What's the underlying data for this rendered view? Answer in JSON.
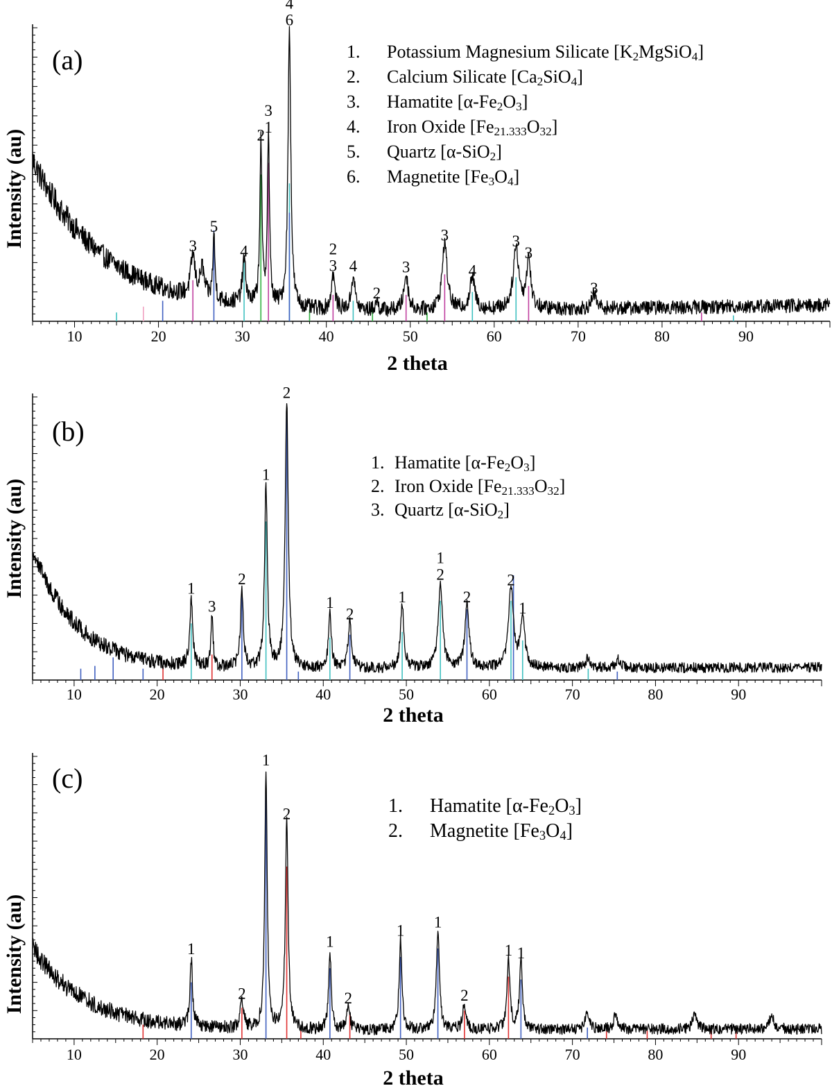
{
  "chart_data": [
    {
      "type": "line",
      "panel_label": "(a)",
      "xlabel": "2 theta",
      "ylabel": "Intensity (au)",
      "xlim": [
        5,
        100
      ],
      "ylim": [
        0,
        100
      ],
      "xticks": [
        10,
        20,
        30,
        40,
        50,
        60,
        70,
        80,
        90
      ],
      "background": {
        "start": 52,
        "decay": 8.5,
        "floor": 3,
        "noise": 4.0,
        "late_slope": 2.5
      },
      "legend": {
        "items": [
          {
            "num": "1.",
            "name": "Potassium Magnesium Silicate",
            "formula": [
              [
                "[K",
                "n"
              ],
              [
                "2",
                "sub"
              ],
              [
                "MgSiO",
                "n"
              ],
              [
                "4",
                "sub"
              ],
              [
                "]",
                "n"
              ]
            ]
          },
          {
            "num": "2.",
            "name": "Calcium Silicate",
            "formula": [
              [
                "[Ca",
                "n"
              ],
              [
                "2",
                "sub"
              ],
              [
                "SiO",
                "n"
              ],
              [
                "4",
                "sub"
              ],
              [
                "]",
                "n"
              ]
            ]
          },
          {
            "num": "3.",
            "name": "Hamatite",
            "formula": [
              [
                "[α-Fe",
                "n"
              ],
              [
                "2",
                "sub"
              ],
              [
                "O",
                "n"
              ],
              [
                "3",
                "sub"
              ],
              [
                "]",
                "n"
              ]
            ]
          },
          {
            "num": "4.",
            "name": "Iron Oxide",
            "formula": [
              [
                "[Fe",
                "n"
              ],
              [
                "21.333",
                "sub"
              ],
              [
                "O",
                "n"
              ],
              [
                "32",
                "sub"
              ],
              [
                "]",
                "n"
              ]
            ]
          },
          {
            "num": "5.",
            "name": "Quartz",
            "formula": [
              [
                "[α-SiO",
                "n"
              ],
              [
                "2",
                "sub"
              ],
              [
                "]",
                "n"
              ]
            ]
          },
          {
            "num": "6.",
            "name": "Magnetite",
            "formula": [
              [
                "[Fe",
                "n"
              ],
              [
                "3",
                "sub"
              ],
              [
                "O",
                "n"
              ],
              [
                "4",
                "sub"
              ],
              [
                "]",
                "n"
              ]
            ]
          }
        ]
      },
      "peaks": [
        {
          "x": 24.1,
          "h": 14,
          "w": 0.3,
          "labels": [
            "3"
          ]
        },
        {
          "x": 25.2,
          "h": 10,
          "w": 0.3,
          "labels": []
        },
        {
          "x": 26.6,
          "h": 22,
          "w": 0.15,
          "labels": [
            "5"
          ]
        },
        {
          "x": 30.2,
          "h": 15,
          "w": 0.25,
          "labels": [
            "4"
          ]
        },
        {
          "x": 32.2,
          "h": 55,
          "w": 0.15,
          "labels": [
            "2"
          ]
        },
        {
          "x": 33.1,
          "h": 58,
          "w": 0.15,
          "labels": [
            "3",
            "1"
          ]
        },
        {
          "x": 35.6,
          "h": 95,
          "w": 0.2,
          "labels": [
            "4",
            "6"
          ]
        },
        {
          "x": 40.8,
          "h": 12,
          "w": 0.25,
          "labels": [
            "2",
            "3"
          ]
        },
        {
          "x": 43.2,
          "h": 12,
          "w": 0.25,
          "labels": [
            "4"
          ]
        },
        {
          "x": 46.0,
          "h": 3,
          "w": 0.2,
          "labels": [
            "2"
          ]
        },
        {
          "x": 49.5,
          "h": 12,
          "w": 0.3,
          "labels": [
            "3"
          ]
        },
        {
          "x": 54.1,
          "h": 23,
          "w": 0.35,
          "labels": [
            "3"
          ]
        },
        {
          "x": 57.4,
          "h": 11,
          "w": 0.35,
          "labels": [
            "4"
          ]
        },
        {
          "x": 62.6,
          "h": 21,
          "w": 0.4,
          "labels": [
            "3"
          ]
        },
        {
          "x": 64.1,
          "h": 17,
          "w": 0.3,
          "labels": [
            "3"
          ]
        },
        {
          "x": 71.9,
          "h": 5,
          "w": 0.3,
          "labels": [
            "3"
          ]
        }
      ],
      "reference_lines": [
        {
          "x": 24.1,
          "h": 14,
          "color": "#c040a0"
        },
        {
          "x": 26.6,
          "h": 31,
          "color": "#4060c0"
        },
        {
          "x": 30.2,
          "h": 22,
          "color": "#40c0c0"
        },
        {
          "x": 32.2,
          "h": 50,
          "color": "#30b040"
        },
        {
          "x": 33.1,
          "h": 54,
          "color": "#c040a0"
        },
        {
          "x": 35.6,
          "h": 47,
          "color": "#40c0c0"
        },
        {
          "x": 35.6,
          "h": 37,
          "color": "#4060c0"
        },
        {
          "x": 40.8,
          "h": 9,
          "color": "#c040a0"
        },
        {
          "x": 43.2,
          "h": 7,
          "color": "#40c0c0"
        },
        {
          "x": 49.5,
          "h": 9,
          "color": "#c040a0"
        },
        {
          "x": 54.1,
          "h": 16,
          "color": "#c040a0"
        },
        {
          "x": 57.4,
          "h": 10,
          "color": "#40c0c0"
        },
        {
          "x": 62.6,
          "h": 15,
          "color": "#40c0c0"
        },
        {
          "x": 64.1,
          "h": 12,
          "color": "#c040a0"
        },
        {
          "x": 20.5,
          "h": 7,
          "color": "#4060c0"
        },
        {
          "x": 18.2,
          "h": 5,
          "color": "#f0a0c0"
        },
        {
          "x": 15.0,
          "h": 3,
          "color": "#40c0c0"
        },
        {
          "x": 38.0,
          "h": 4,
          "color": "#30b040"
        },
        {
          "x": 45.5,
          "h": 5,
          "color": "#30b040"
        },
        {
          "x": 52.0,
          "h": 3,
          "color": "#30b040"
        },
        {
          "x": 84.7,
          "h": 3,
          "color": "#c040a0"
        },
        {
          "x": 88.5,
          "h": 2,
          "color": "#40c0c0"
        }
      ]
    },
    {
      "type": "line",
      "panel_label": "(b)",
      "xlabel": "2 theta",
      "ylabel": "Intensity (au)",
      "xlim": [
        5,
        100
      ],
      "ylim": [
        0,
        100
      ],
      "xticks": [
        10,
        20,
        30,
        40,
        50,
        60,
        70,
        80,
        90
      ],
      "background": {
        "start": 43,
        "decay": 5.2,
        "floor": 4,
        "noise": 3.0,
        "late_slope": 0.5
      },
      "legend": {
        "items": [
          {
            "num": "1.",
            "name": "Hamatite",
            "formula": [
              [
                "[α-Fe",
                "n"
              ],
              [
                "2",
                "sub"
              ],
              [
                "O",
                "n"
              ],
              [
                "3",
                "sub"
              ],
              [
                "]",
                "n"
              ]
            ]
          },
          {
            "num": "2.",
            "name": "Iron Oxide",
            "formula": [
              [
                "[Fe",
                "n"
              ],
              [
                "21.333",
                "sub"
              ],
              [
                "O",
                "n"
              ],
              [
                "32",
                "sub"
              ],
              [
                "]",
                "n"
              ]
            ]
          },
          {
            "num": "3.",
            "name": "Quartz",
            "formula": [
              [
                "[α-SiO",
                "n"
              ],
              [
                "2",
                "sub"
              ],
              [
                "]",
                "n"
              ]
            ]
          }
        ]
      },
      "peaks": [
        {
          "x": 24.1,
          "h": 24,
          "w": 0.2,
          "labels": [
            "1"
          ]
        },
        {
          "x": 26.6,
          "h": 18,
          "w": 0.15,
          "labels": [
            "3"
          ]
        },
        {
          "x": 30.2,
          "h": 28,
          "w": 0.2,
          "labels": [
            "2"
          ]
        },
        {
          "x": 33.1,
          "h": 65,
          "w": 0.2,
          "labels": [
            "1"
          ]
        },
        {
          "x": 35.6,
          "h": 94,
          "w": 0.22,
          "labels": [
            "2"
          ]
        },
        {
          "x": 40.8,
          "h": 20,
          "w": 0.2,
          "labels": [
            "1"
          ]
        },
        {
          "x": 43.2,
          "h": 16,
          "w": 0.25,
          "labels": [
            "2"
          ]
        },
        {
          "x": 49.5,
          "h": 22,
          "w": 0.25,
          "labels": [
            "1"
          ]
        },
        {
          "x": 54.1,
          "h": 30,
          "w": 0.3,
          "labels": [
            "1",
            "2"
          ]
        },
        {
          "x": 57.3,
          "h": 22,
          "w": 0.3,
          "labels": [
            "2"
          ]
        },
        {
          "x": 62.6,
          "h": 28,
          "w": 0.35,
          "labels": [
            "2"
          ]
        },
        {
          "x": 64.0,
          "h": 18,
          "w": 0.3,
          "labels": [
            "1"
          ]
        },
        {
          "x": 71.9,
          "h": 4,
          "w": 0.3,
          "labels": []
        },
        {
          "x": 75.5,
          "h": 3,
          "w": 0.3,
          "labels": []
        }
      ],
      "reference_lines": [
        {
          "x": 24.1,
          "h": 20,
          "color": "#40c0c0"
        },
        {
          "x": 26.6,
          "h": 9,
          "color": "#e03030"
        },
        {
          "x": 30.2,
          "h": 31,
          "color": "#4060c0"
        },
        {
          "x": 33.1,
          "h": 56,
          "color": "#40c0c0"
        },
        {
          "x": 35.6,
          "h": 94,
          "color": "#4060c0"
        },
        {
          "x": 40.8,
          "h": 15,
          "color": "#40c0c0"
        },
        {
          "x": 43.2,
          "h": 16,
          "color": "#4060c0"
        },
        {
          "x": 49.5,
          "h": 17,
          "color": "#40c0c0"
        },
        {
          "x": 54.1,
          "h": 28,
          "color": "#40c0c0"
        },
        {
          "x": 57.3,
          "h": 25,
          "color": "#4060c0"
        },
        {
          "x": 62.6,
          "h": 28,
          "color": "#40c0c0"
        },
        {
          "x": 62.9,
          "h": 37,
          "color": "#4060c0"
        },
        {
          "x": 64.0,
          "h": 14,
          "color": "#40c0c0"
        },
        {
          "x": 10.8,
          "h": 4,
          "color": "#4060c0"
        },
        {
          "x": 12.5,
          "h": 5,
          "color": "#4060c0"
        },
        {
          "x": 14.7,
          "h": 8,
          "color": "#4060c0"
        },
        {
          "x": 18.3,
          "h": 4,
          "color": "#4060c0"
        },
        {
          "x": 20.7,
          "h": 5,
          "color": "#e03030"
        },
        {
          "x": 37.0,
          "h": 3,
          "color": "#4060c0"
        },
        {
          "x": 71.9,
          "h": 4,
          "color": "#40c0c0"
        },
        {
          "x": 75.4,
          "h": 3,
          "color": "#4060c0"
        }
      ]
    },
    {
      "type": "line",
      "panel_label": "(c)",
      "xlabel": "2 theta",
      "ylabel": "Intensity (au)",
      "xlim": [
        5,
        100
      ],
      "ylim": [
        0,
        100
      ],
      "xticks": [
        10,
        20,
        30,
        40,
        50,
        60,
        70,
        80,
        90
      ],
      "background": {
        "start": 29,
        "decay": 6.5,
        "floor": 3,
        "noise": 3.2,
        "late_slope": 0.5
      },
      "legend": {
        "items": [
          {
            "num": "1.",
            "name": "Hamatite",
            "formula": [
              [
                "[α-Fe",
                "n"
              ],
              [
                "2",
                "sub"
              ],
              [
                "O",
                "n"
              ],
              [
                "3",
                "sub"
              ],
              [
                "]",
                "n"
              ]
            ]
          },
          {
            "num": "2.",
            "name": "Magnetite",
            "formula": [
              [
                "[Fe",
                "n"
              ],
              [
                "3",
                "sub"
              ],
              [
                "O",
                "n"
              ],
              [
                "4",
                "sub"
              ],
              [
                "]",
                "n"
              ]
            ]
          }
        ]
      },
      "peaks": [
        {
          "x": 24.1,
          "h": 24,
          "w": 0.18,
          "labels": [
            "1"
          ]
        },
        {
          "x": 30.2,
          "h": 9,
          "w": 0.25,
          "labels": [
            "2"
          ]
        },
        {
          "x": 33.1,
          "h": 92,
          "w": 0.18,
          "labels": [
            "1"
          ]
        },
        {
          "x": 35.6,
          "h": 73,
          "w": 0.2,
          "labels": [
            "2"
          ]
        },
        {
          "x": 40.8,
          "h": 28,
          "w": 0.18,
          "labels": [
            "1"
          ]
        },
        {
          "x": 43.0,
          "h": 8,
          "w": 0.25,
          "labels": [
            "2"
          ]
        },
        {
          "x": 49.3,
          "h": 32,
          "w": 0.2,
          "labels": [
            "1"
          ]
        },
        {
          "x": 53.8,
          "h": 35,
          "w": 0.22,
          "labels": [
            "1"
          ]
        },
        {
          "x": 57.0,
          "h": 9,
          "w": 0.25,
          "labels": [
            "2"
          ]
        },
        {
          "x": 62.3,
          "h": 25,
          "w": 0.22,
          "labels": [
            "1"
          ]
        },
        {
          "x": 63.8,
          "h": 24,
          "w": 0.22,
          "labels": [
            "1"
          ]
        },
        {
          "x": 71.8,
          "h": 6,
          "w": 0.3,
          "labels": []
        },
        {
          "x": 75.2,
          "h": 5,
          "w": 0.3,
          "labels": []
        },
        {
          "x": 84.7,
          "h": 5,
          "w": 0.3,
          "labels": []
        },
        {
          "x": 94.0,
          "h": 5,
          "w": 0.3,
          "labels": []
        }
      ],
      "reference_lines": [
        {
          "x": 18.3,
          "h": 5,
          "color": "#e03030"
        },
        {
          "x": 24.1,
          "h": 20,
          "color": "#4060c0"
        },
        {
          "x": 30.2,
          "h": 11,
          "color": "#e03030"
        },
        {
          "x": 33.1,
          "h": 90,
          "color": "#4060c0"
        },
        {
          "x": 35.6,
          "h": 61,
          "color": "#e03030"
        },
        {
          "x": 37.3,
          "h": 3,
          "color": "#e03030"
        },
        {
          "x": 40.8,
          "h": 25,
          "color": "#4060c0"
        },
        {
          "x": 43.2,
          "h": 9,
          "color": "#e03030"
        },
        {
          "x": 49.3,
          "h": 29,
          "color": "#4060c0"
        },
        {
          "x": 53.8,
          "h": 32,
          "color": "#4060c0"
        },
        {
          "x": 57.0,
          "h": 10,
          "color": "#e03030"
        },
        {
          "x": 62.3,
          "h": 22,
          "color": "#e03030"
        },
        {
          "x": 63.8,
          "h": 21,
          "color": "#4060c0"
        },
        {
          "x": 71.8,
          "h": 4,
          "color": "#4060c0"
        },
        {
          "x": 74.1,
          "h": 3,
          "color": "#e03030"
        },
        {
          "x": 79.0,
          "h": 3,
          "color": "#e03030"
        },
        {
          "x": 86.7,
          "h": 3,
          "color": "#e03030"
        },
        {
          "x": 89.7,
          "h": 3,
          "color": "#e03030"
        }
      ]
    }
  ]
}
